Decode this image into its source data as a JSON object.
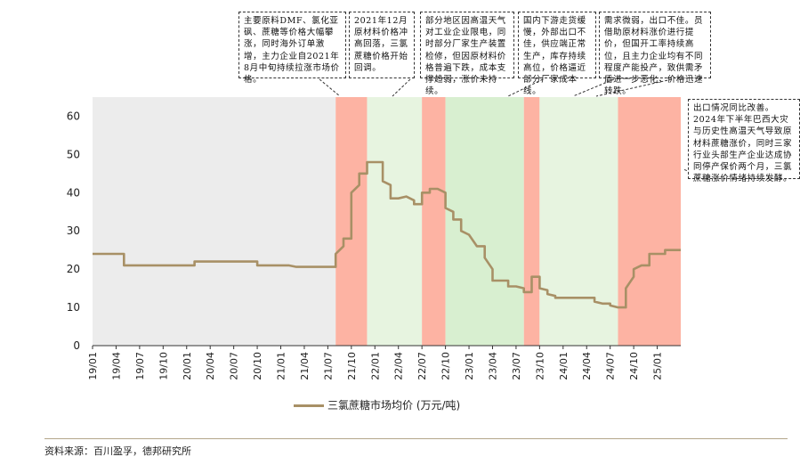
{
  "chart_data": {
    "type": "line",
    "series": [
      {
        "name": "三氯蔗糖市场均价 (万元/吨)",
        "color": "#a89066",
        "points": [
          [
            "2019-01",
            24
          ],
          [
            "2019-05",
            24
          ],
          [
            "2019-05",
            21
          ],
          [
            "2019-06",
            21
          ],
          [
            "2019-09",
            21
          ],
          [
            "2019-12",
            21
          ],
          [
            "2020-02",
            21
          ],
          [
            "2020-02",
            22
          ],
          [
            "2020-06",
            22
          ],
          [
            "2020-10",
            22
          ],
          [
            "2020-10",
            21
          ],
          [
            "2020-12",
            21
          ],
          [
            "2021-02",
            21
          ],
          [
            "2021-03",
            20.6
          ],
          [
            "2021-06",
            20.6
          ],
          [
            "2021-08",
            20.6
          ],
          [
            "2021-08",
            24
          ],
          [
            "2021-09",
            26
          ],
          [
            "2021-09",
            28
          ],
          [
            "2021-10",
            28
          ],
          [
            "2021-10",
            32
          ],
          [
            "2021-10",
            36
          ],
          [
            "2021-10",
            40
          ],
          [
            "2021-11",
            42
          ],
          [
            "2021-11",
            45
          ],
          [
            "2021-12",
            45
          ],
          [
            "2021-12",
            48
          ],
          [
            "2022-02",
            48
          ],
          [
            "2022-02",
            43
          ],
          [
            "2022-03",
            42
          ],
          [
            "2022-03",
            40
          ],
          [
            "2022-03",
            38.5
          ],
          [
            "2022-04",
            38.5
          ],
          [
            "2022-05",
            39
          ],
          [
            "2022-06",
            38
          ],
          [
            "2022-06",
            37
          ],
          [
            "2022-07",
            37
          ],
          [
            "2022-07",
            40
          ],
          [
            "2022-08",
            40
          ],
          [
            "2022-08",
            41
          ],
          [
            "2022-09",
            41
          ],
          [
            "2022-10",
            40
          ],
          [
            "2022-10",
            36
          ],
          [
            "2022-11",
            35
          ],
          [
            "2022-11",
            33
          ],
          [
            "2022-12",
            33
          ],
          [
            "2022-12",
            30
          ],
          [
            "2023-01",
            29
          ],
          [
            "2023-02",
            26
          ],
          [
            "2023-03",
            26
          ],
          [
            "2023-03",
            23
          ],
          [
            "2023-04",
            20
          ],
          [
            "2023-04",
            17
          ],
          [
            "2023-06",
            17
          ],
          [
            "2023-06",
            15.5
          ],
          [
            "2023-07",
            15.5
          ],
          [
            "2023-08",
            15
          ],
          [
            "2023-08",
            14
          ],
          [
            "2023-09",
            14
          ],
          [
            "2023-09",
            17
          ],
          [
            "2023-09",
            18
          ],
          [
            "2023-10",
            18
          ],
          [
            "2023-10",
            15
          ],
          [
            "2023-11",
            14.5
          ],
          [
            "2023-11",
            13.5
          ],
          [
            "2023-12",
            13
          ],
          [
            "2023-12",
            12.5
          ],
          [
            "2024-05",
            12.5
          ],
          [
            "2024-05",
            11.5
          ],
          [
            "2024-06",
            11
          ],
          [
            "2024-07",
            11
          ],
          [
            "2024-07",
            10.5
          ],
          [
            "2024-08",
            10
          ],
          [
            "2024-09",
            10
          ],
          [
            "2024-09",
            15
          ],
          [
            "2024-10",
            18
          ],
          [
            "2024-10",
            20
          ],
          [
            "2024-11",
            21
          ],
          [
            "2024-12",
            21
          ],
          [
            "2024-12",
            24
          ],
          [
            "2025-02",
            24
          ],
          [
            "2025-02",
            25
          ],
          [
            "2025-04",
            25
          ]
        ]
      }
    ],
    "x_ticks": [
      "19/01",
      "19/04",
      "19/07",
      "19/10",
      "20/01",
      "20/04",
      "20/07",
      "20/10",
      "21/01",
      "21/04",
      "21/07",
      "21/10",
      "22/01",
      "22/04",
      "22/07",
      "22/10",
      "23/01",
      "23/04",
      "23/07",
      "23/10",
      "24/01",
      "24/04",
      "24/07",
      "24/10",
      "25/01"
    ],
    "x_range": [
      "2019-01",
      "2025-04"
    ],
    "y_ticks": [
      0,
      10,
      20,
      30,
      40,
      50,
      60
    ],
    "ylim": [
      0,
      65
    ],
    "shaded_bands": [
      {
        "start": "2019-01",
        "end": "2021-08",
        "color": "#ececec"
      },
      {
        "start": "2021-08",
        "end": "2021-12",
        "color": "#fdb3a3"
      },
      {
        "start": "2021-12",
        "end": "2022-07",
        "color": "#e7f4e0"
      },
      {
        "start": "2022-07",
        "end": "2022-10",
        "color": "#fdb3a3"
      },
      {
        "start": "2022-10",
        "end": "2023-08",
        "color": "#d8efd0"
      },
      {
        "start": "2023-08",
        "end": "2023-10",
        "color": "#fdb3a3"
      },
      {
        "start": "2023-10",
        "end": "2024-08",
        "color": "#e7f4e0"
      },
      {
        "start": "2024-08",
        "end": "2025-04",
        "color": "#fdb3a3"
      }
    ],
    "annotations": [
      "主要原料DMF、氯化亚砜、蔗糖等价格大幅攀涨，同时海外订单激增，主力企业自2021年8月中旬持续拉涨市场价格。",
      "2021年12月原材料价格冲高回落，三氯蔗糖价格开始回调。",
      "部分地区因高温天气对工业企业限电，同时部分厂家生产装置检修，但因原材料价格普遍下跌，成本支撑趋弱，涨价未持续。",
      "国内下游走货缓慢，外部出口不佳，供应端正常生产，库存持续高位，价格逼近部分厂家成本线。",
      "需求微弱，出口不佳。员借助原材料涨价进行提价，但国开工率持续高位，且主力企业均有不同程度产能投产，致供需矛盾进一步恶化，价格迅速转跌。",
      "出口情况同比改善。2024年下半年巴西大灾与历史性高温天气导致原材料蔗糖涨价，同时三家行业头部生产企业达成协同停产保价两个月，三氯蔗糖涨价情绪持续发酵。"
    ]
  },
  "source": "资料来源：百川盈孚，德邦研究所"
}
